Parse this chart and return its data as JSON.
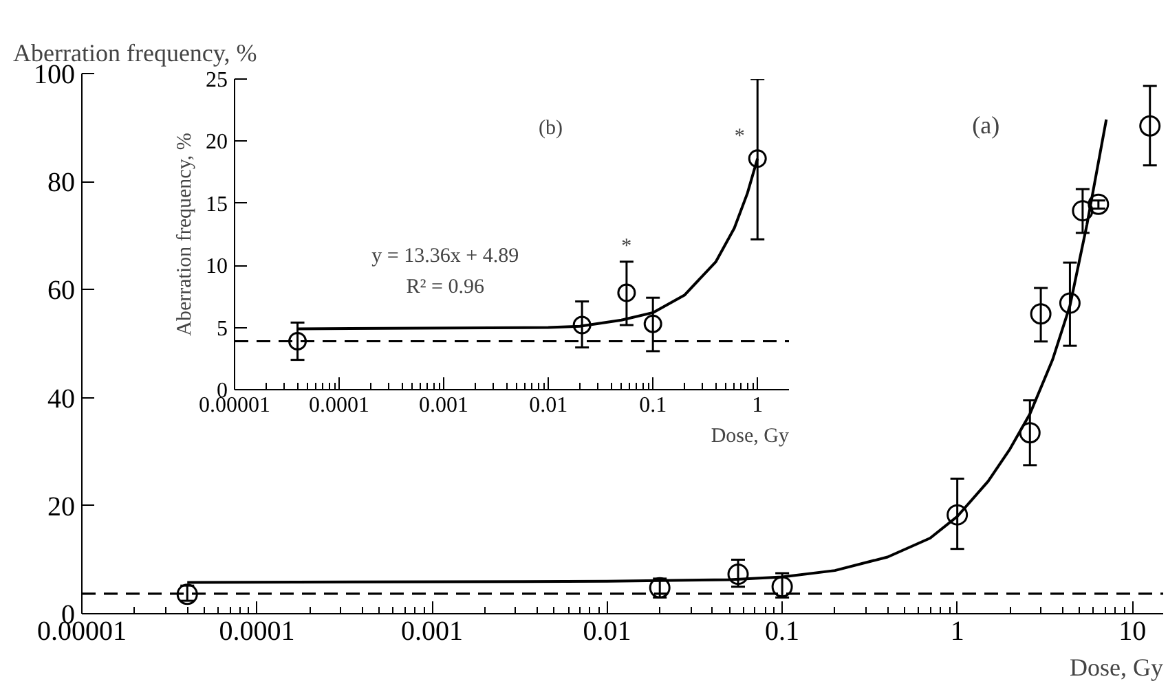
{
  "chart_data": [
    {
      "type": "scatter",
      "ylabel": "Aberration frequency, %",
      "xlabel": "Dose, Gy",
      "log": "x",
      "xlim": [
        1e-05,
        15
      ],
      "ylim": [
        0,
        100
      ],
      "xticks": [
        {
          "value": 1e-05,
          "label": "0.00001"
        },
        0.0001,
        0.001,
        0.01,
        0.1,
        1,
        10
      ],
      "yticks": [
        0,
        20,
        40,
        60,
        80,
        100
      ],
      "grid": false,
      "series": [
        {
          "marker": "circle",
          "color": "#000000",
          "x": [
            4e-05,
            0.02,
            0.056,
            0.1,
            1,
            2.6,
            3.0,
            4.4,
            5.2,
            6.4,
            12.6
          ],
          "values": [
            3.6,
            4.8,
            7.3,
            5.0,
            18.3,
            33.5,
            55.5,
            57.5,
            74.6,
            75.8,
            90.3
          ],
          "errors": [
            [
              2.4,
              5.2
            ],
            [
              3.0,
              6.5
            ],
            [
              5.0,
              10.0
            ],
            [
              3.0,
              7.5
            ],
            [
              12,
              25
            ],
            [
              27.5,
              39.5
            ],
            [
              50.4,
              60.3
            ],
            [
              49.6,
              65
            ],
            [
              70.5,
              78.6
            ],
            [
              75,
              76.5
            ],
            [
              83,
              97.7
            ]
          ]
        },
        {
          "type": "line",
          "color": "#000000",
          "x": [
            4e-05,
            0.01,
            0.05,
            0.1,
            0.2,
            0.4,
            0.7,
            1,
            1.5,
            2,
            2.6,
            3.5,
            4.4,
            5.5,
            7.1
          ],
          "values": [
            5.8,
            6.0,
            6.3,
            6.8,
            8,
            10.5,
            14,
            18,
            24.5,
            30.5,
            37,
            47,
            57,
            72,
            91.5
          ]
        }
      ],
      "ref_lines": [
        {
          "axis": "y",
          "value": 3.7,
          "line_style": "dashed",
          "color": "#000000"
        }
      ],
      "annotations": [
        "(a)"
      ]
    },
    {
      "type": "scatter",
      "ylabel": "Aberration frequency, %",
      "xlabel": "Dose, Gy",
      "log": "x",
      "xlim": [
        1e-05,
        2
      ],
      "ylim": [
        0,
        25
      ],
      "xticks": [
        {
          "value": 1e-05,
          "label": "0.00001"
        },
        0.0001,
        0.001,
        0.01,
        0.1,
        1
      ],
      "yticks": [
        0,
        5,
        10,
        15,
        20,
        25
      ],
      "grid": false,
      "series": [
        {
          "marker": "circle",
          "color": "#000000",
          "x": [
            4e-05,
            0.021,
            0.056,
            0.1,
            1
          ],
          "values": [
            3.9,
            5.2,
            7.8,
            5.3,
            18.6
          ],
          "errors": [
            [
              2.4,
              5.4
            ],
            [
              3.4,
              7.1
            ],
            [
              5.2,
              10.3
            ],
            [
              3.1,
              7.4
            ],
            [
              12.1,
              25.0
            ]
          ]
        },
        {
          "type": "line",
          "color": "#000000",
          "x": [
            4e-05,
            0.01,
            0.02,
            0.05,
            0.1,
            0.2,
            0.4,
            0.6,
            0.8,
            1
          ],
          "values": [
            4.9,
            5.0,
            5.1,
            5.6,
            6.2,
            7.6,
            10.3,
            13,
            15.8,
            18.6
          ]
        }
      ],
      "ref_lines": [
        {
          "axis": "y",
          "value": 3.9,
          "line_style": "dashed",
          "color": "#000000"
        }
      ],
      "annotations": [
        "(b)",
        "y = 13.36x + 4.89",
        "R² = 0.96",
        "*",
        "*"
      ]
    }
  ]
}
